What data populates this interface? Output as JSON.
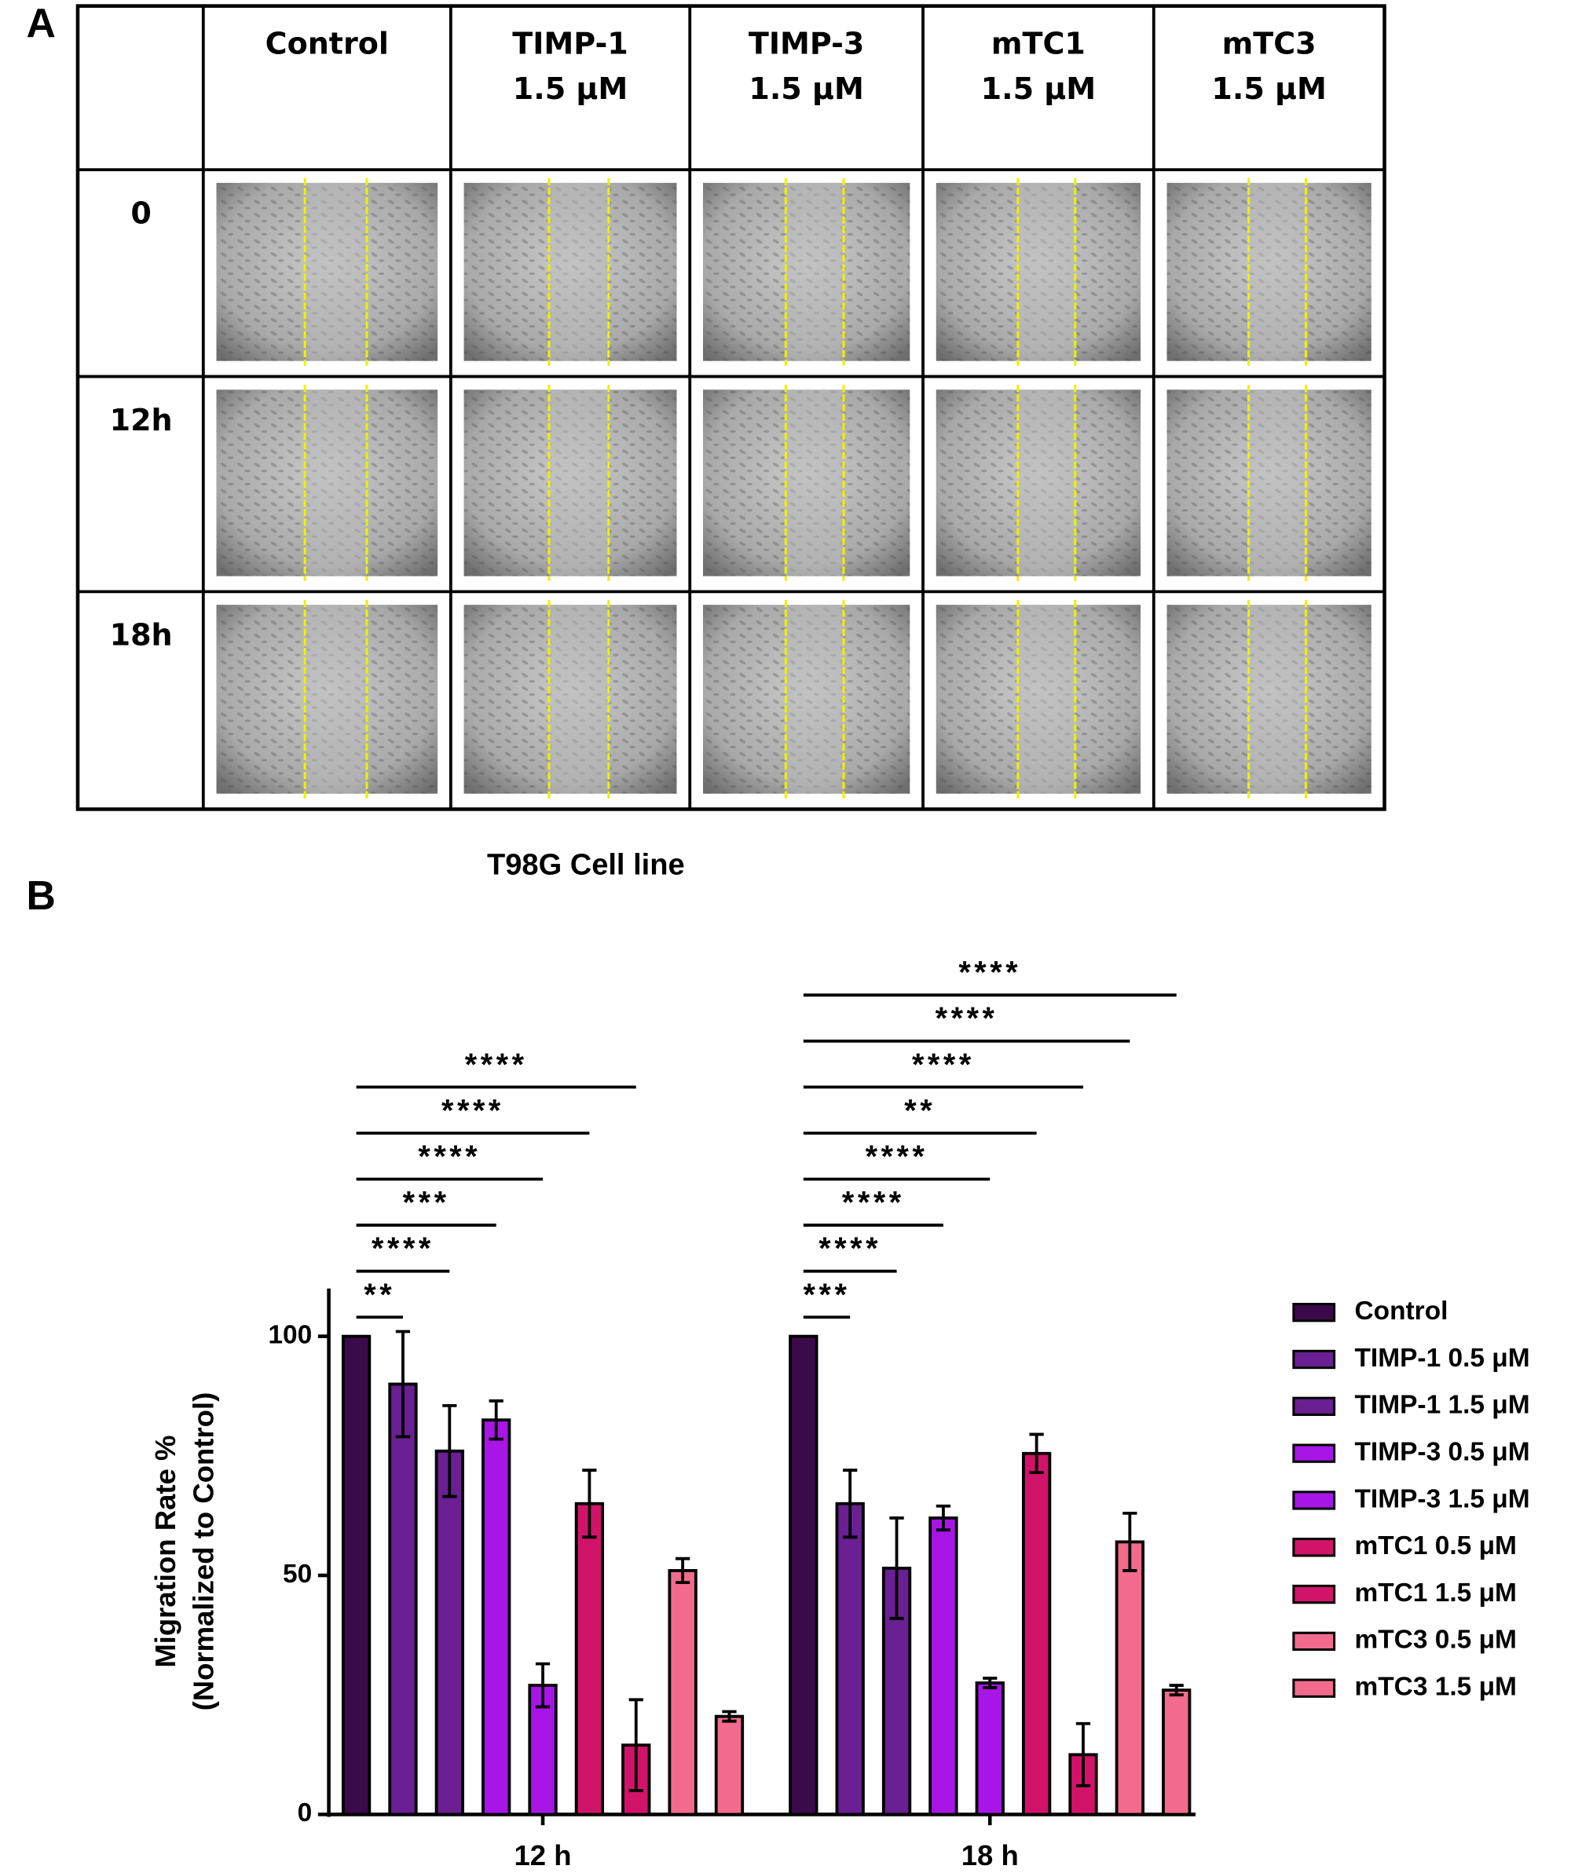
{
  "panel_a": {
    "label": "A",
    "columns": [
      [
        "Control"
      ],
      [
        "TIMP-1",
        "1.5 µM"
      ],
      [
        "TIMP-3",
        "1.5 µM"
      ],
      [
        "mTC1",
        "1.5 µM"
      ],
      [
        "mTC3",
        "1.5 µM"
      ]
    ],
    "rows": [
      "0",
      "12h",
      "18h"
    ],
    "caption": "T98G Cell line"
  },
  "chart_data": {
    "type": "bar",
    "label": "B",
    "ylabel": [
      "Migration Rate %",
      "(Normalized to Control)"
    ],
    "categories": [
      "12 h",
      "18 h"
    ],
    "ylim": [
      0,
      110
    ],
    "yticks": [
      0,
      50,
      100
    ],
    "series": [
      {
        "name": "Control",
        "color": "#3b0a4a",
        "values": [
          100,
          100
        ],
        "errors": [
          0,
          0
        ]
      },
      {
        "name": "TIMP-1 0.5 μM",
        "color": "#6a1f92",
        "values": [
          90,
          65
        ],
        "errors": [
          11,
          7
        ]
      },
      {
        "name": "TIMP-1 1.5 μM",
        "color": "#6a1f92",
        "values": [
          76,
          51.5
        ],
        "errors": [
          9.5,
          10.5
        ]
      },
      {
        "name": "TIMP-3 0.5 μM",
        "color": "#a716e6",
        "values": [
          82.5,
          62
        ],
        "errors": [
          4,
          2.5
        ]
      },
      {
        "name": "TIMP-3 1.5 μM",
        "color": "#a716e6",
        "values": [
          27,
          27.5
        ],
        "errors": [
          4.5,
          1
        ]
      },
      {
        "name": "mTC1 0.5 μM",
        "color": "#d1146a",
        "values": [
          65,
          75.5
        ],
        "errors": [
          7,
          4
        ]
      },
      {
        "name": "mTC1 1.5 μM",
        "color": "#d1146a",
        "values": [
          14.5,
          12.5
        ],
        "errors": [
          9.5,
          6.5
        ]
      },
      {
        "name": "mTC3 0.5 μM",
        "color": "#f26b8c",
        "values": [
          51,
          57
        ],
        "errors": [
          2.5,
          6
        ]
      },
      {
        "name": "mTC3 1.5 μM",
        "color": "#f26b8c",
        "values": [
          20.5,
          26
        ],
        "errors": [
          1,
          1
        ]
      }
    ],
    "comparisons": [
      [
        {
          "label": "**",
          "to": 1
        },
        {
          "label": "****",
          "to": 2
        },
        {
          "label": "***",
          "to": 3
        },
        {
          "label": "****",
          "to": 4
        },
        {
          "label": "****",
          "to": 5
        },
        {
          "label": "****",
          "to": 6
        }
      ],
      [
        {
          "label": "***",
          "to": 1
        },
        {
          "label": "****",
          "to": 2
        },
        {
          "label": "****",
          "to": 3
        },
        {
          "label": "****",
          "to": 4
        },
        {
          "label": "**",
          "to": 5
        },
        {
          "label": "****",
          "to": 6
        },
        {
          "label": "****",
          "to": 7
        },
        {
          "label": "****",
          "to": 8
        }
      ]
    ]
  }
}
